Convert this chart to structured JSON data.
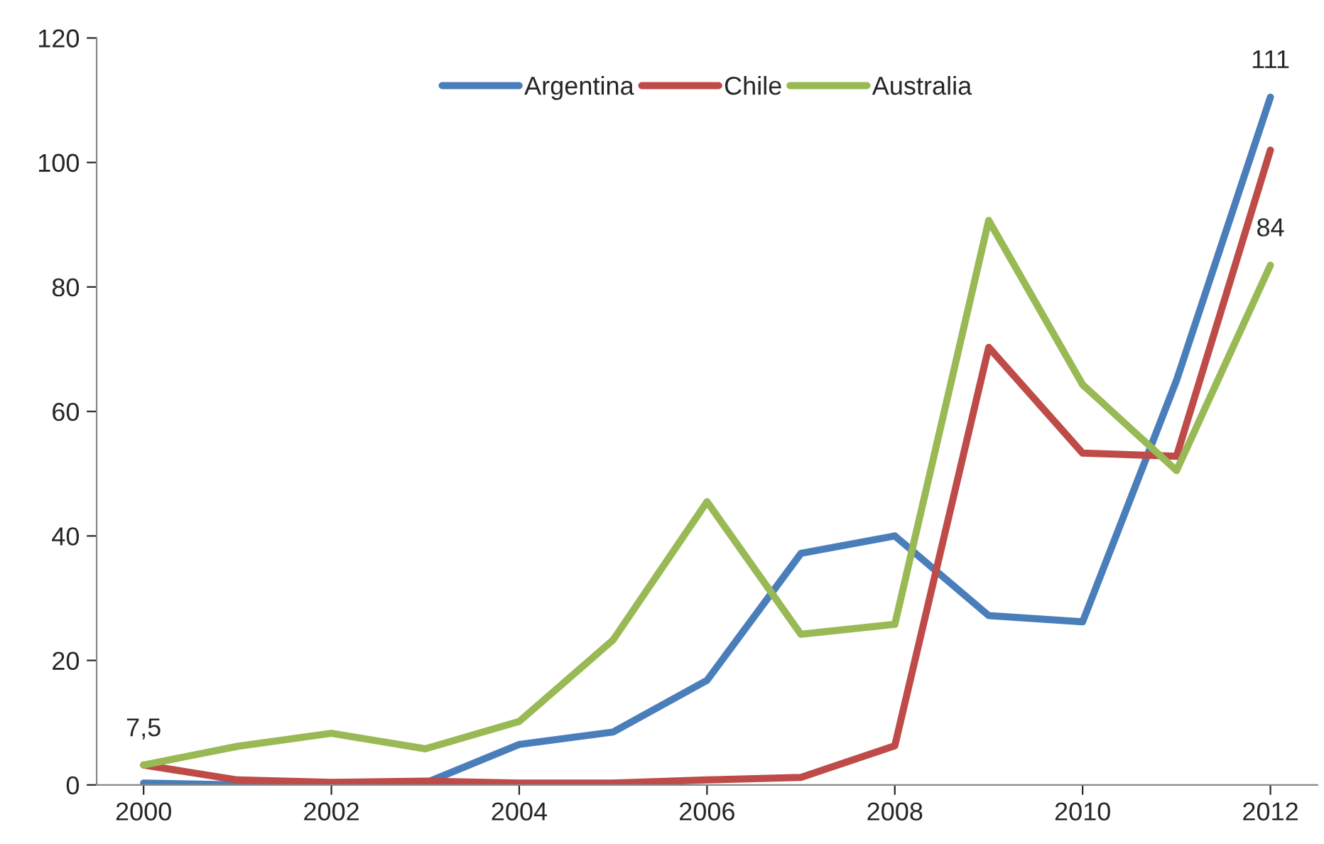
{
  "chart_data": {
    "type": "line",
    "x": [
      2000,
      2001,
      2002,
      2003,
      2004,
      2005,
      2006,
      2007,
      2008,
      2009,
      2010,
      2011,
      2012
    ],
    "series": [
      {
        "name": "Argentina",
        "color": "#4a7ebb",
        "values": [
          0.3,
          0,
          0.2,
          0.3,
          6.5,
          8.5,
          16.8,
          37.2,
          40,
          27.2,
          26.2,
          65,
          110.5
        ],
        "value_labels": [
          null,
          null,
          null,
          null,
          null,
          null,
          null,
          null,
          null,
          null,
          null,
          null,
          "111"
        ]
      },
      {
        "name": "Chile",
        "color": "#be4b48",
        "values": [
          3.2,
          0.8,
          0.4,
          0.6,
          0.3,
          0.3,
          0.8,
          1.2,
          6.3,
          70.3,
          53.3,
          52.8,
          102
        ]
      },
      {
        "name": "Australia",
        "color": "#98b954",
        "values": [
          3.2,
          6.2,
          8.3,
          5.8,
          10.2,
          23.3,
          45.5,
          24.2,
          25.8,
          90.7,
          64.3,
          50.5,
          83.5
        ],
        "value_labels": [
          null,
          null,
          null,
          null,
          null,
          null,
          null,
          null,
          null,
          null,
          null,
          null,
          "84"
        ]
      }
    ],
    "xlim": [
      1999.5,
      2012.5
    ],
    "xticks": [
      2000,
      2002,
      2004,
      2006,
      2008,
      2010,
      2012
    ],
    "ylim": [
      0,
      120
    ],
    "yticks": [
      0,
      20,
      40,
      60,
      80,
      100,
      120
    ],
    "annotations": [
      "7,5"
    ],
    "grid": false,
    "legend": "top",
    "marker": "none",
    "line_style": "solid"
  }
}
